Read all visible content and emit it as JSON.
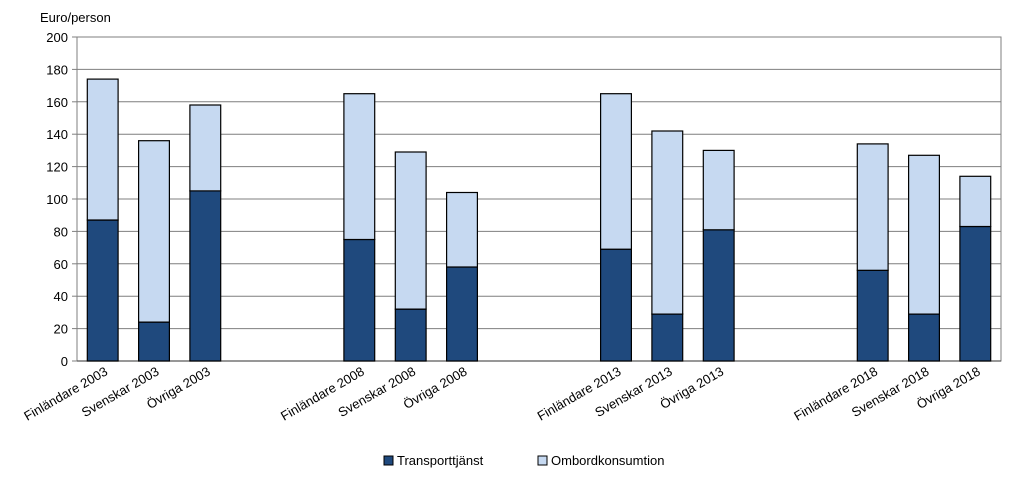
{
  "chart_data": {
    "type": "bar",
    "stacked": true,
    "ylabel": "Euro/person",
    "ylim": [
      0,
      200
    ],
    "yticks": [
      0,
      20,
      40,
      60,
      80,
      100,
      120,
      140,
      160,
      180,
      200
    ],
    "grid": true,
    "legend_position": "bottom-center",
    "categories": [
      "Finländare 2003",
      "Svenskar 2003",
      "Övriga 2003",
      "Finländare 2008",
      "Svenskar 2008",
      "Övriga 2008",
      "Finländare 2013",
      "Svenskar 2013",
      "Övriga 2013",
      "Finländare 2018",
      "Svenskar 2018",
      "Övriga 2018"
    ],
    "series": [
      {
        "name": "Transporttjänst",
        "color": "#1f497d",
        "values": [
          87,
          24,
          105,
          75,
          32,
          58,
          69,
          29,
          81,
          56,
          29,
          83
        ]
      },
      {
        "name": "Ombordkonsumtion",
        "color": "#c6d9f1",
        "values": [
          87,
          112,
          53,
          90,
          97,
          46,
          96,
          113,
          49,
          78,
          98,
          31
        ]
      }
    ]
  }
}
